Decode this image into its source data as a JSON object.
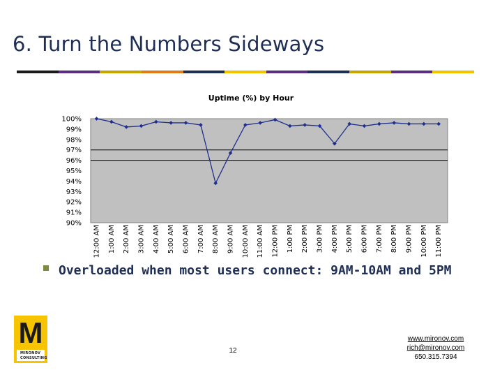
{
  "slide": {
    "title": "6. Turn the Numbers Sideways",
    "stripe_colors": [
      "#1a1a1a",
      "#5b2d83",
      "#c9a400",
      "#e07b1a",
      "#1f2e54",
      "#f3c300",
      "#5b2d83",
      "#1f2e54",
      "#c9a400",
      "#5b2d83",
      "#f3c300"
    ],
    "bullet": "Overloaded when most users connect: 9AM-10AM and 5PM",
    "page_number": "12",
    "contact": {
      "website": "www.mironov.com",
      "email": "rich@mironov.com",
      "phone": "650.315.7394"
    },
    "logo": {
      "letter": "M",
      "line1": "MIRONOV",
      "line2": "CONSULTING",
      "color": "#f6c400"
    }
  },
  "chart_data": {
    "type": "line",
    "title": "Uptime (%) by Hour",
    "xlabel": "",
    "ylabel": "",
    "ylim": [
      90,
      100
    ],
    "y_ticks": [
      "100%",
      "99%",
      "98%",
      "97%",
      "96%",
      "95%",
      "94%",
      "93%",
      "92%",
      "91%",
      "90%"
    ],
    "gridlines": [
      97,
      96
    ],
    "categories": [
      "12:00 AM",
      "1:00 AM",
      "2:00 AM",
      "3:00 AM",
      "4:00 AM",
      "5:00 AM",
      "6:00 AM",
      "7:00 AM",
      "8:00 AM",
      "9:00 AM",
      "10:00 AM",
      "11:00 AM",
      "12:00 PM",
      "1:00 PM",
      "2:00 PM",
      "3:00 PM",
      "4:00 PM",
      "5:00 PM",
      "6:00 PM",
      "7:00 PM",
      "8:00 PM",
      "9:00 PM",
      "10:00 PM",
      "11:00 PM"
    ],
    "values": [
      100,
      99.7,
      99.2,
      99.3,
      99.7,
      99.6,
      99.6,
      99.4,
      93.8,
      96.7,
      99.4,
      99.6,
      99.9,
      99.3,
      99.4,
      99.3,
      97.6,
      99.5,
      99.3,
      99.5,
      99.6,
      99.5,
      99.5,
      99.5
    ],
    "plot_background": "#c0c0c0",
    "line_color": "#1f2f8f",
    "grid": true,
    "legend": "none"
  }
}
